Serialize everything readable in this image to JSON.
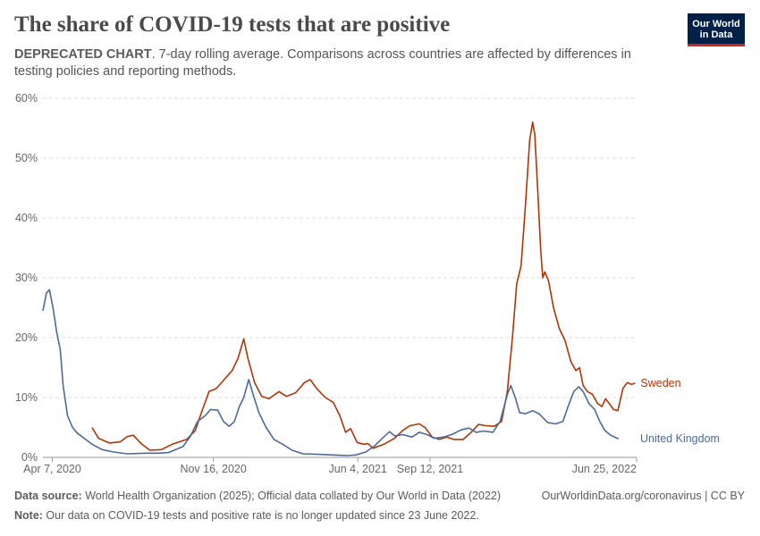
{
  "header": {
    "title": "The share of COVID-19 tests that are positive",
    "subtitle_lead": "DEPRECATED CHART",
    "subtitle_rest": ". 7-day rolling average. Comparisons across countries are affected by differences in testing policies and reporting methods."
  },
  "logo": {
    "line1": "Our World",
    "line2": "in Data",
    "bg_color": "#002147",
    "accent_color": "#ce261e"
  },
  "footer": {
    "source_label": "Data source:",
    "source_text": " World Health Organization (2025); Official data collated by Our World in Data (2022)",
    "url_text": "OurWorldinData.org/coronavirus | CC BY",
    "note_label": "Note:",
    "note_text": " Our data on COVID-19 tests and positive rate is no longer updated since 23 June 2022."
  },
  "chart_data": {
    "type": "line",
    "x_type": "date",
    "x_range": [
      "2020-03-25",
      "2022-06-25"
    ],
    "ylim": [
      0,
      60
    ],
    "y_ticks": [
      0,
      10,
      20,
      30,
      40,
      50,
      60
    ],
    "y_tick_labels": [
      "0%",
      "10%",
      "20%",
      "30%",
      "40%",
      "50%",
      "60%"
    ],
    "x_ticks": [
      "2020-04-07",
      "2020-11-16",
      "2021-06-04",
      "2021-09-12",
      "2022-06-25"
    ],
    "x_tick_labels": [
      "Apr 7, 2020",
      "Nov 16, 2020",
      "Jun 4, 2021",
      "Sep 12, 2021",
      "Jun 25, 2022"
    ],
    "grid": "horizontal dashed",
    "legend": "inline labels at line ends",
    "series": [
      {
        "name": "Sweden",
        "color": "#b13507",
        "points": [
          [
            "2020-06-01",
            5.0
          ],
          [
            "2020-06-10",
            3.2
          ],
          [
            "2020-06-25",
            2.4
          ],
          [
            "2020-07-10",
            2.6
          ],
          [
            "2020-07-20",
            3.5
          ],
          [
            "2020-07-28",
            3.7
          ],
          [
            "2020-08-08",
            2.3
          ],
          [
            "2020-08-20",
            1.2
          ],
          [
            "2020-09-05",
            1.3
          ],
          [
            "2020-09-20",
            2.2
          ],
          [
            "2020-10-10",
            3.0
          ],
          [
            "2020-10-22",
            4.5
          ],
          [
            "2020-11-01",
            8.0
          ],
          [
            "2020-11-10",
            11.0
          ],
          [
            "2020-11-20",
            11.5
          ],
          [
            "2020-12-01",
            13.0
          ],
          [
            "2020-12-12",
            14.5
          ],
          [
            "2020-12-20",
            16.5
          ],
          [
            "2020-12-28",
            19.8
          ],
          [
            "2021-01-03",
            16.5
          ],
          [
            "2021-01-12",
            12.5
          ],
          [
            "2021-01-22",
            10.2
          ],
          [
            "2021-02-01",
            9.8
          ],
          [
            "2021-02-15",
            11.0
          ],
          [
            "2021-02-25",
            10.2
          ],
          [
            "2021-03-10",
            10.8
          ],
          [
            "2021-03-22",
            12.5
          ],
          [
            "2021-03-30",
            13.0
          ],
          [
            "2021-04-08",
            11.5
          ],
          [
            "2021-04-20",
            10.0
          ],
          [
            "2021-05-01",
            9.2
          ],
          [
            "2021-05-10",
            7.0
          ],
          [
            "2021-05-18",
            4.2
          ],
          [
            "2021-05-25",
            4.8
          ],
          [
            "2021-06-03",
            2.5
          ],
          [
            "2021-06-12",
            2.2
          ],
          [
            "2021-06-18",
            2.3
          ],
          [
            "2021-06-25",
            1.5
          ],
          [
            "2021-07-10",
            2.2
          ],
          [
            "2021-07-25",
            3.2
          ],
          [
            "2021-08-05",
            4.5
          ],
          [
            "2021-08-15",
            5.3
          ],
          [
            "2021-08-28",
            5.6
          ],
          [
            "2021-09-05",
            5.0
          ],
          [
            "2021-09-15",
            3.4
          ],
          [
            "2021-09-25",
            3.0
          ],
          [
            "2021-10-05",
            3.4
          ],
          [
            "2021-10-15",
            3.0
          ],
          [
            "2021-10-28",
            3.0
          ],
          [
            "2021-11-08",
            4.2
          ],
          [
            "2021-11-18",
            5.5
          ],
          [
            "2021-11-28",
            5.3
          ],
          [
            "2021-12-10",
            5.2
          ],
          [
            "2021-12-20",
            6.0
          ],
          [
            "2021-12-28",
            11.0
          ],
          [
            "2022-01-04",
            20.0
          ],
          [
            "2022-01-10",
            29.0
          ],
          [
            "2022-01-16",
            32.0
          ],
          [
            "2022-01-22",
            42.0
          ],
          [
            "2022-01-28",
            53.0
          ],
          [
            "2022-02-01",
            56.0
          ],
          [
            "2022-02-04",
            54.0
          ],
          [
            "2022-02-08",
            45.0
          ],
          [
            "2022-02-12",
            35.0
          ],
          [
            "2022-02-15",
            30.0
          ],
          [
            "2022-02-18",
            31.0
          ],
          [
            "2022-02-23",
            29.5
          ],
          [
            "2022-03-02",
            25.0
          ],
          [
            "2022-03-10",
            21.5
          ],
          [
            "2022-03-18",
            19.5
          ],
          [
            "2022-03-26",
            16.0
          ],
          [
            "2022-04-02",
            14.5
          ],
          [
            "2022-04-07",
            15.0
          ],
          [
            "2022-04-12",
            12.0
          ],
          [
            "2022-04-18",
            11.0
          ],
          [
            "2022-04-25",
            10.5
          ],
          [
            "2022-05-02",
            9.0
          ],
          [
            "2022-05-08",
            8.5
          ],
          [
            "2022-05-13",
            9.8
          ],
          [
            "2022-05-18",
            9.0
          ],
          [
            "2022-05-24",
            8.0
          ],
          [
            "2022-05-30",
            7.8
          ],
          [
            "2022-06-06",
            11.5
          ],
          [
            "2022-06-12",
            12.5
          ],
          [
            "2022-06-18",
            12.2
          ],
          [
            "2022-06-23",
            12.4
          ]
        ]
      },
      {
        "name": "United Kingdom",
        "color": "#4c6a9c",
        "points": [
          [
            "2020-03-25",
            24.5
          ],
          [
            "2020-03-30",
            27.5
          ],
          [
            "2020-04-03",
            28.0
          ],
          [
            "2020-04-08",
            25.0
          ],
          [
            "2020-04-13",
            21.0
          ],
          [
            "2020-04-18",
            18.0
          ],
          [
            "2020-04-22",
            12.0
          ],
          [
            "2020-04-28",
            7.0
          ],
          [
            "2020-05-05",
            5.0
          ],
          [
            "2020-05-12",
            4.0
          ],
          [
            "2020-05-20",
            3.3
          ],
          [
            "2020-06-01",
            2.2
          ],
          [
            "2020-06-15",
            1.3
          ],
          [
            "2020-07-01",
            0.9
          ],
          [
            "2020-07-20",
            0.6
          ],
          [
            "2020-08-15",
            0.7
          ],
          [
            "2020-09-01",
            0.7
          ],
          [
            "2020-09-15",
            0.8
          ],
          [
            "2020-09-25",
            1.3
          ],
          [
            "2020-10-05",
            1.8
          ],
          [
            "2020-10-15",
            3.5
          ],
          [
            "2020-10-25",
            6.0
          ],
          [
            "2020-11-05",
            7.0
          ],
          [
            "2020-11-12",
            8.0
          ],
          [
            "2020-11-22",
            7.9
          ],
          [
            "2020-11-30",
            6.0
          ],
          [
            "2020-12-08",
            5.2
          ],
          [
            "2020-12-15",
            6.0
          ],
          [
            "2020-12-22",
            8.5
          ],
          [
            "2020-12-28",
            10.0
          ],
          [
            "2021-01-04",
            13.0
          ],
          [
            "2021-01-10",
            10.5
          ],
          [
            "2021-01-18",
            7.5
          ],
          [
            "2021-01-28",
            5.0
          ],
          [
            "2021-02-08",
            3.0
          ],
          [
            "2021-02-20",
            2.2
          ],
          [
            "2021-03-05",
            1.2
          ],
          [
            "2021-03-20",
            0.6
          ],
          [
            "2021-04-10",
            0.5
          ],
          [
            "2021-05-01",
            0.4
          ],
          [
            "2021-05-20",
            0.3
          ],
          [
            "2021-06-01",
            0.4
          ],
          [
            "2021-06-15",
            0.9
          ],
          [
            "2021-06-28",
            2.0
          ],
          [
            "2021-07-08",
            3.2
          ],
          [
            "2021-07-18",
            4.3
          ],
          [
            "2021-07-25",
            3.6
          ],
          [
            "2021-08-05",
            3.8
          ],
          [
            "2021-08-18",
            3.4
          ],
          [
            "2021-08-28",
            4.2
          ],
          [
            "2021-09-08",
            3.8
          ],
          [
            "2021-09-18",
            3.2
          ],
          [
            "2021-10-01",
            3.4
          ],
          [
            "2021-10-12",
            3.8
          ],
          [
            "2021-10-25",
            4.6
          ],
          [
            "2021-11-05",
            4.9
          ],
          [
            "2021-11-15",
            4.2
          ],
          [
            "2021-11-25",
            4.4
          ],
          [
            "2021-12-08",
            4.2
          ],
          [
            "2021-12-18",
            6.0
          ],
          [
            "2021-12-28",
            10.5
          ],
          [
            "2022-01-02",
            12.0
          ],
          [
            "2022-01-08",
            10.0
          ],
          [
            "2022-01-14",
            7.5
          ],
          [
            "2022-01-22",
            7.3
          ],
          [
            "2022-02-01",
            7.8
          ],
          [
            "2022-02-10",
            7.3
          ],
          [
            "2022-02-22",
            5.8
          ],
          [
            "2022-03-05",
            5.6
          ],
          [
            "2022-03-15",
            6.0
          ],
          [
            "2022-03-22",
            8.5
          ],
          [
            "2022-03-30",
            11.0
          ],
          [
            "2022-04-06",
            11.8
          ],
          [
            "2022-04-12",
            11.0
          ],
          [
            "2022-04-20",
            9.0
          ],
          [
            "2022-04-28",
            8.0
          ],
          [
            "2022-05-05",
            6.0
          ],
          [
            "2022-05-12",
            4.5
          ],
          [
            "2022-05-20",
            3.7
          ],
          [
            "2022-05-27",
            3.3
          ],
          [
            "2022-05-31",
            3.1
          ]
        ]
      }
    ]
  }
}
